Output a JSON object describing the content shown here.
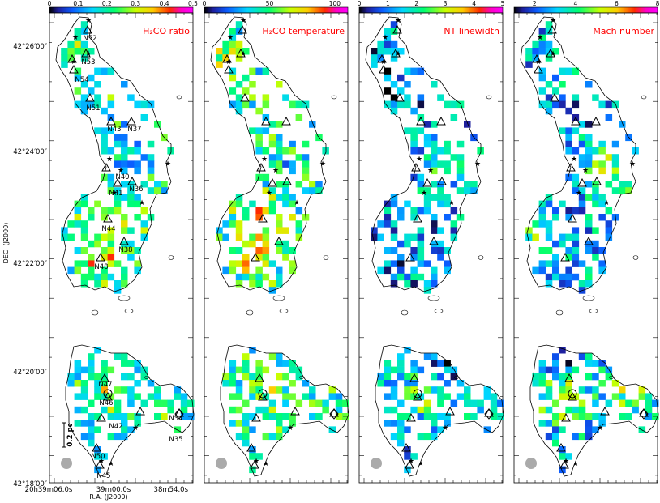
{
  "figure": {
    "axes": {
      "xlabel": "R.A. (J2000)",
      "ylabel": "DEC. (J2000)",
      "dec_ticks": [
        "42°26′00″",
        "42°24′00″",
        "42°22′00″",
        "42°20′00″",
        "42°18′00″"
      ],
      "ra_ticks": [
        "20h39m06.0s",
        "39m00.0s",
        "38m54.0s"
      ]
    },
    "panels": [
      {
        "id": "h2co-ratio",
        "title": "H₂CO ratio",
        "colorbar": {
          "ticks": [
            "0",
            "0.1",
            "0.2",
            "0.3",
            "0.4",
            "0.5"
          ],
          "range": [
            0,
            0.5
          ]
        }
      },
      {
        "id": "h2co-temperature",
        "title": "H₂CO temperature",
        "colorbar": {
          "ticks": [
            "0",
            "50",
            "100"
          ],
          "range": [
            0,
            110
          ]
        }
      },
      {
        "id": "nt-linewidth",
        "title": "NT linewidth",
        "colorbar": {
          "ticks": [
            "0",
            "1",
            "2",
            "3",
            "4",
            "5"
          ],
          "range": [
            0,
            5
          ]
        }
      },
      {
        "id": "mach-number",
        "title": "Mach number",
        "colorbar": {
          "ticks": [
            "2",
            "4",
            "6",
            "8"
          ],
          "range": [
            1,
            8
          ]
        }
      }
    ],
    "scalebar": {
      "label": "0.2 pc"
    },
    "clumps": [
      "N52",
      "N53",
      "N54",
      "N51",
      "N43",
      "N37",
      "N40",
      "N36",
      "N41",
      "N44",
      "N38",
      "N48",
      "N47",
      "N46",
      "N42",
      "N34",
      "N35",
      "N50",
      "N45"
    ],
    "colors": {
      "title": "#ff0000",
      "outline": "#000000",
      "beam": "#aaaaaa"
    }
  }
}
